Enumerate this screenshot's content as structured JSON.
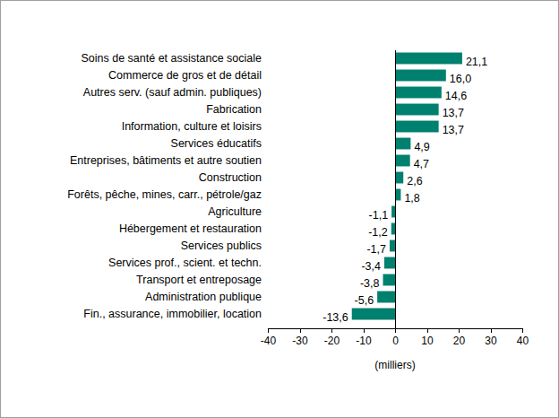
{
  "chart_data": {
    "type": "bar",
    "orientation": "horizontal",
    "categories": [
      "Soins de santé et assistance sociale",
      "Commerce de gros et de détail",
      "Autres serv. (sauf admin. publiques)",
      "Fabrication",
      "Information, culture et loisirs",
      "Services éducatifs",
      "Entreprises, bâtiments et autre soutien",
      "Construction",
      "Forêts, pêche, mines, carr., pétrole/gaz",
      "Agriculture",
      "Hébergement et restauration",
      "Services publics",
      "Services prof., scient. et techn.",
      "Transport et entreposage",
      "Administration publique",
      "Fin., assurance, immobilier, location"
    ],
    "values": [
      21.1,
      16.0,
      14.6,
      13.7,
      13.7,
      4.9,
      4.7,
      2.6,
      1.8,
      -1.1,
      -1.2,
      -1.7,
      -3.4,
      -3.8,
      -5.6,
      -13.6
    ],
    "value_labels": [
      "21,1",
      "16,0",
      "14,6",
      "13,7",
      "13,7",
      "4,9",
      "4,7",
      "2,6",
      "1,8",
      "-1,1",
      "-1,2",
      "-1,7",
      "-3,4",
      "-3,8",
      "-5,6",
      "-13,6"
    ],
    "data_labels": true,
    "color": "#00806e",
    "xlabel": "(milliers)",
    "xlim": [
      -40,
      40
    ],
    "xticks": [
      -40,
      -30,
      -20,
      -10,
      0,
      10,
      20,
      30,
      40
    ],
    "grid": false
  }
}
